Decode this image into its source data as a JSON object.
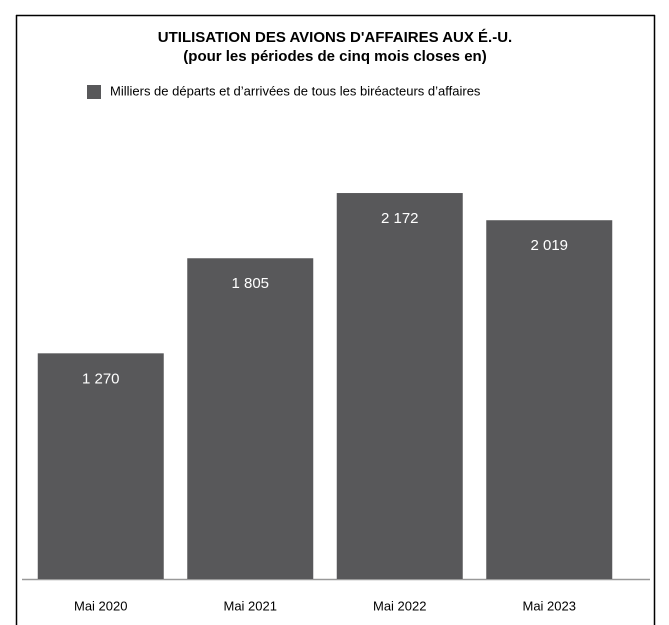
{
  "chart_data": {
    "type": "bar",
    "title": "UTILISATION DES AVIONS D'AFFAIRES AUX É.-U.",
    "subtitle": "(pour les périodes de cinq mois closes en)",
    "categories": [
      "Mai 2020",
      "Mai 2021",
      "Mai 2022",
      "Mai 2023"
    ],
    "series": [
      {
        "name": "Milliers de départs et d’arrivées de tous les biréacteurs d’affaires",
        "color": "#58585a",
        "values": [
          1270,
          1805,
          2172,
          2019
        ],
        "value_labels": [
          "1 270",
          "1 805",
          "2 172",
          "2 019"
        ]
      }
    ]
  }
}
